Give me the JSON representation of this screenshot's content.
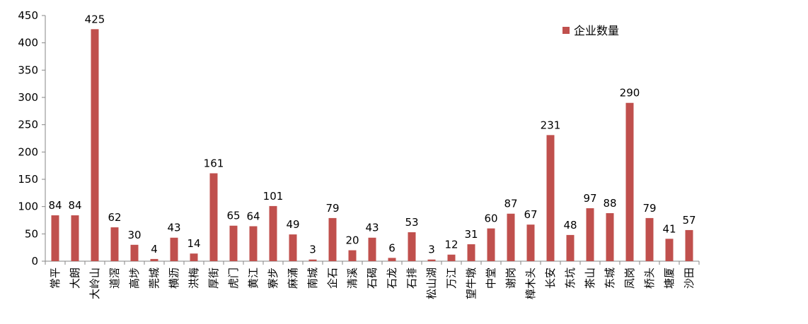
{
  "chart_data": {
    "type": "bar",
    "categories": [
      "常平",
      "大朗",
      "大岭山",
      "道滘",
      "高埗",
      "莞城",
      "横沥",
      "洪梅",
      "厚街",
      "虎门",
      "黄江",
      "寮步",
      "麻涌",
      "南城",
      "企石",
      "清溪",
      "石碣",
      "石龙",
      "石排",
      "松山湖",
      "万江",
      "望牛墩",
      "中堂",
      "谢岗",
      "樟木头",
      "长安",
      "东坑",
      "茶山",
      "东城",
      "凤岗",
      "桥头",
      "塘厦",
      "沙田"
    ],
    "series": [
      {
        "name": "企业数量",
        "values": [
          84,
          84,
          425,
          62,
          30,
          4,
          43,
          14,
          161,
          65,
          64,
          101,
          49,
          3,
          79,
          20,
          43,
          6,
          53,
          3,
          12,
          31,
          60,
          87,
          67,
          231,
          48,
          97,
          88,
          290,
          79,
          41,
          57
        ]
      }
    ],
    "ylim": [
      0,
      450
    ],
    "yticks": [
      0,
      50,
      100,
      150,
      200,
      250,
      300,
      350,
      400,
      450
    ],
    "legend": "top-right",
    "grid": false,
    "bar_color": "#c0504d"
  }
}
